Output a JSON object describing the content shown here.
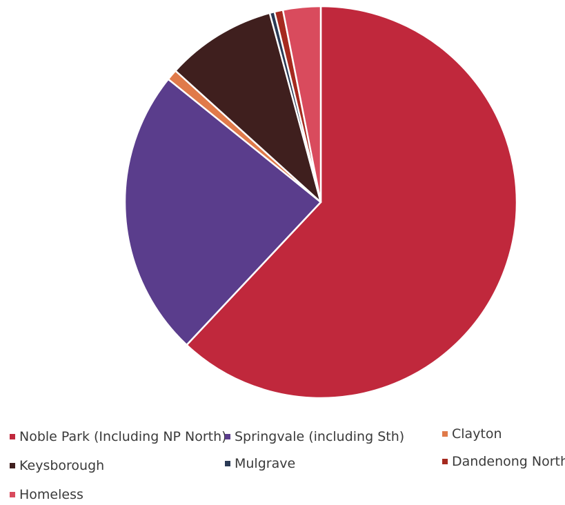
{
  "chart_data": {
    "type": "pie",
    "title": "",
    "slices": [
      {
        "label": "Noble Park (Including NP North)",
        "value": 62.0,
        "color": "#c0283c"
      },
      {
        "label": "Springvale (including Sth)",
        "value": 23.8,
        "color": "#5a3d8c"
      },
      {
        "label": "Clayton",
        "value": 0.9,
        "color": "#e07a4a"
      },
      {
        "label": "Keysborough",
        "value": 9.1,
        "color": "#3f1f1e"
      },
      {
        "label": "Mulgrave",
        "value": 0.4,
        "color": "#2a3a55"
      },
      {
        "label": "Dandenong North",
        "value": 0.7,
        "color": "#a52a1f"
      },
      {
        "label": "Homeless",
        "value": 3.1,
        "color": "#d94b5d"
      }
    ],
    "legend_position": "bottom"
  }
}
